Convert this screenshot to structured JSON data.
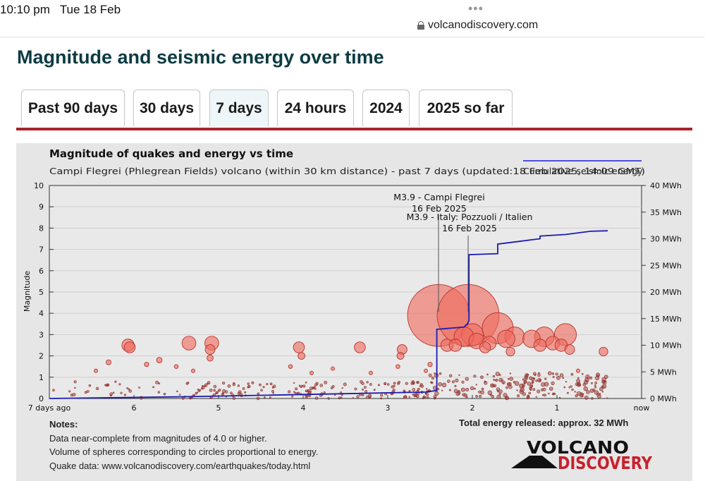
{
  "status": {
    "time": "10:10 pm",
    "date": "Tue 18 Feb",
    "dots": "•••",
    "url": "volcanodiscovery.com"
  },
  "page": {
    "title": "Magnitude and seismic energy over time"
  },
  "tabs": [
    {
      "label": "Past 90 days",
      "active": false
    },
    {
      "label": "30 days",
      "active": false
    },
    {
      "label": "7 days",
      "active": true
    },
    {
      "label": "24 hours",
      "active": false
    },
    {
      "label": "2024",
      "active": false
    },
    {
      "label": "2025 so far",
      "active": false
    }
  ],
  "chart_data": {
    "type": "scatter",
    "title": "Magnitude of quakes and energy vs time",
    "subtitle": "Campi Flegrei (Phlegrean Fields) volcano (within 30 km distance) - past 7 days (updated:18 Feb 2025, 14:09 GMT)",
    "legend": "Cumulative seismic energy",
    "xlabel": "",
    "ylabel": "Magnitude",
    "xlim": [
      7,
      0
    ],
    "ylim": [
      0,
      10
    ],
    "y2lim": [
      0,
      40
    ],
    "x_ticks": [
      "7 days ago",
      "6",
      "5",
      "4",
      "3",
      "2",
      "1",
      "now"
    ],
    "y_ticks": [
      "0",
      "1",
      "2",
      "3",
      "4",
      "5",
      "6",
      "7",
      "8",
      "9",
      "10"
    ],
    "y2_ticks": [
      "0 MWh",
      "5 MWh",
      "10 MWh",
      "15 MWh",
      "20 MWh",
      "25 MWh",
      "30 MWh",
      "35 MWh",
      "40 MWh"
    ],
    "annotations": [
      {
        "lines": [
          "M3.9 - Campi Flegrei",
          "16 Feb 2025"
        ],
        "days_ago": 2.4,
        "mag": 3.9
      },
      {
        "lines": [
          "M3.9 - Italy: Pozzuoli / Italien",
          "16 Feb 2025"
        ],
        "days_ago": 2.05,
        "mag": 3.9
      }
    ],
    "quakes": [
      {
        "days_ago": 2.4,
        "mag": 3.9
      },
      {
        "days_ago": 2.05,
        "mag": 3.9
      },
      {
        "days_ago": 1.7,
        "mag": 3.3
      },
      {
        "days_ago": 0.9,
        "mag": 3.0
      },
      {
        "days_ago": 2.1,
        "mag": 2.9
      },
      {
        "days_ago": 2.0,
        "mag": 3.0
      },
      {
        "days_ago": 1.95,
        "mag": 2.7
      },
      {
        "days_ago": 1.8,
        "mag": 2.6
      },
      {
        "days_ago": 1.6,
        "mag": 2.8
      },
      {
        "days_ago": 1.5,
        "mag": 2.9
      },
      {
        "days_ago": 1.3,
        "mag": 2.8
      },
      {
        "days_ago": 1.15,
        "mag": 2.9
      },
      {
        "days_ago": 1.05,
        "mag": 2.6
      },
      {
        "days_ago": 1.2,
        "mag": 2.5
      },
      {
        "days_ago": 0.85,
        "mag": 2.3
      },
      {
        "days_ago": 0.95,
        "mag": 2.5
      },
      {
        "days_ago": 0.45,
        "mag": 2.2
      },
      {
        "days_ago": 2.3,
        "mag": 2.5
      },
      {
        "days_ago": 2.2,
        "mag": 2.5
      },
      {
        "days_ago": 1.85,
        "mag": 2.4
      },
      {
        "days_ago": 1.55,
        "mag": 2.2
      },
      {
        "days_ago": 6.07,
        "mag": 2.5
      },
      {
        "days_ago": 6.05,
        "mag": 2.4
      },
      {
        "days_ago": 5.35,
        "mag": 2.6
      },
      {
        "days_ago": 5.08,
        "mag": 2.6
      },
      {
        "days_ago": 5.1,
        "mag": 2.3
      },
      {
        "days_ago": 5.1,
        "mag": 1.9
      },
      {
        "days_ago": 4.05,
        "mag": 2.4
      },
      {
        "days_ago": 4.02,
        "mag": 2.0
      },
      {
        "days_ago": 3.33,
        "mag": 2.4
      },
      {
        "days_ago": 2.83,
        "mag": 2.3
      },
      {
        "days_ago": 2.85,
        "mag": 2.0
      },
      {
        "days_ago": 6.3,
        "mag": 1.7
      },
      {
        "days_ago": 6.45,
        "mag": 1.3
      },
      {
        "days_ago": 5.85,
        "mag": 1.6
      },
      {
        "days_ago": 5.7,
        "mag": 1.8
      },
      {
        "days_ago": 5.5,
        "mag": 1.5
      },
      {
        "days_ago": 5.3,
        "mag": 1.3
      },
      {
        "days_ago": 4.15,
        "mag": 1.5
      },
      {
        "days_ago": 3.9,
        "mag": 1.2
      },
      {
        "days_ago": 3.65,
        "mag": 1.4
      },
      {
        "days_ago": 3.2,
        "mag": 1.2
      },
      {
        "days_ago": 2.88,
        "mag": 1.5
      },
      {
        "days_ago": 2.5,
        "mag": 1.6
      },
      {
        "days_ago": 2.55,
        "mag": 1.3
      },
      {
        "days_ago": 0.75,
        "mag": 1.3
      }
    ],
    "energy_curve": [
      [
        7.0,
        0.0
      ],
      [
        5.5,
        0.3
      ],
      [
        4.5,
        0.6
      ],
      [
        3.5,
        0.9
      ],
      [
        2.55,
        1.2
      ],
      [
        2.42,
        1.5
      ],
      [
        2.42,
        13.0
      ],
      [
        2.1,
        13.4
      ],
      [
        2.06,
        14.0
      ],
      [
        2.04,
        14.6
      ],
      [
        2.04,
        27.0
      ],
      [
        1.7,
        27.2
      ],
      [
        1.7,
        29.0
      ],
      [
        1.45,
        29.5
      ],
      [
        1.2,
        30.0
      ],
      [
        1.2,
        30.5
      ],
      [
        0.9,
        30.8
      ],
      [
        0.6,
        31.4
      ],
      [
        0.4,
        31.5
      ]
    ]
  },
  "notes": {
    "heading": "Notes:",
    "line1": "Data near-complete from magnitudes of 4.0 or higher.",
    "line2": "Volume of spheres corresponding to circles proportional to energy.",
    "line3": "Quake data: www.volcanodiscovery.com/earthquakes/today.html"
  },
  "total_energy": "Total energy released: approx. 32 MWh",
  "logo": {
    "word1": "VOLCANO",
    "word2": "DISCOVERY"
  }
}
